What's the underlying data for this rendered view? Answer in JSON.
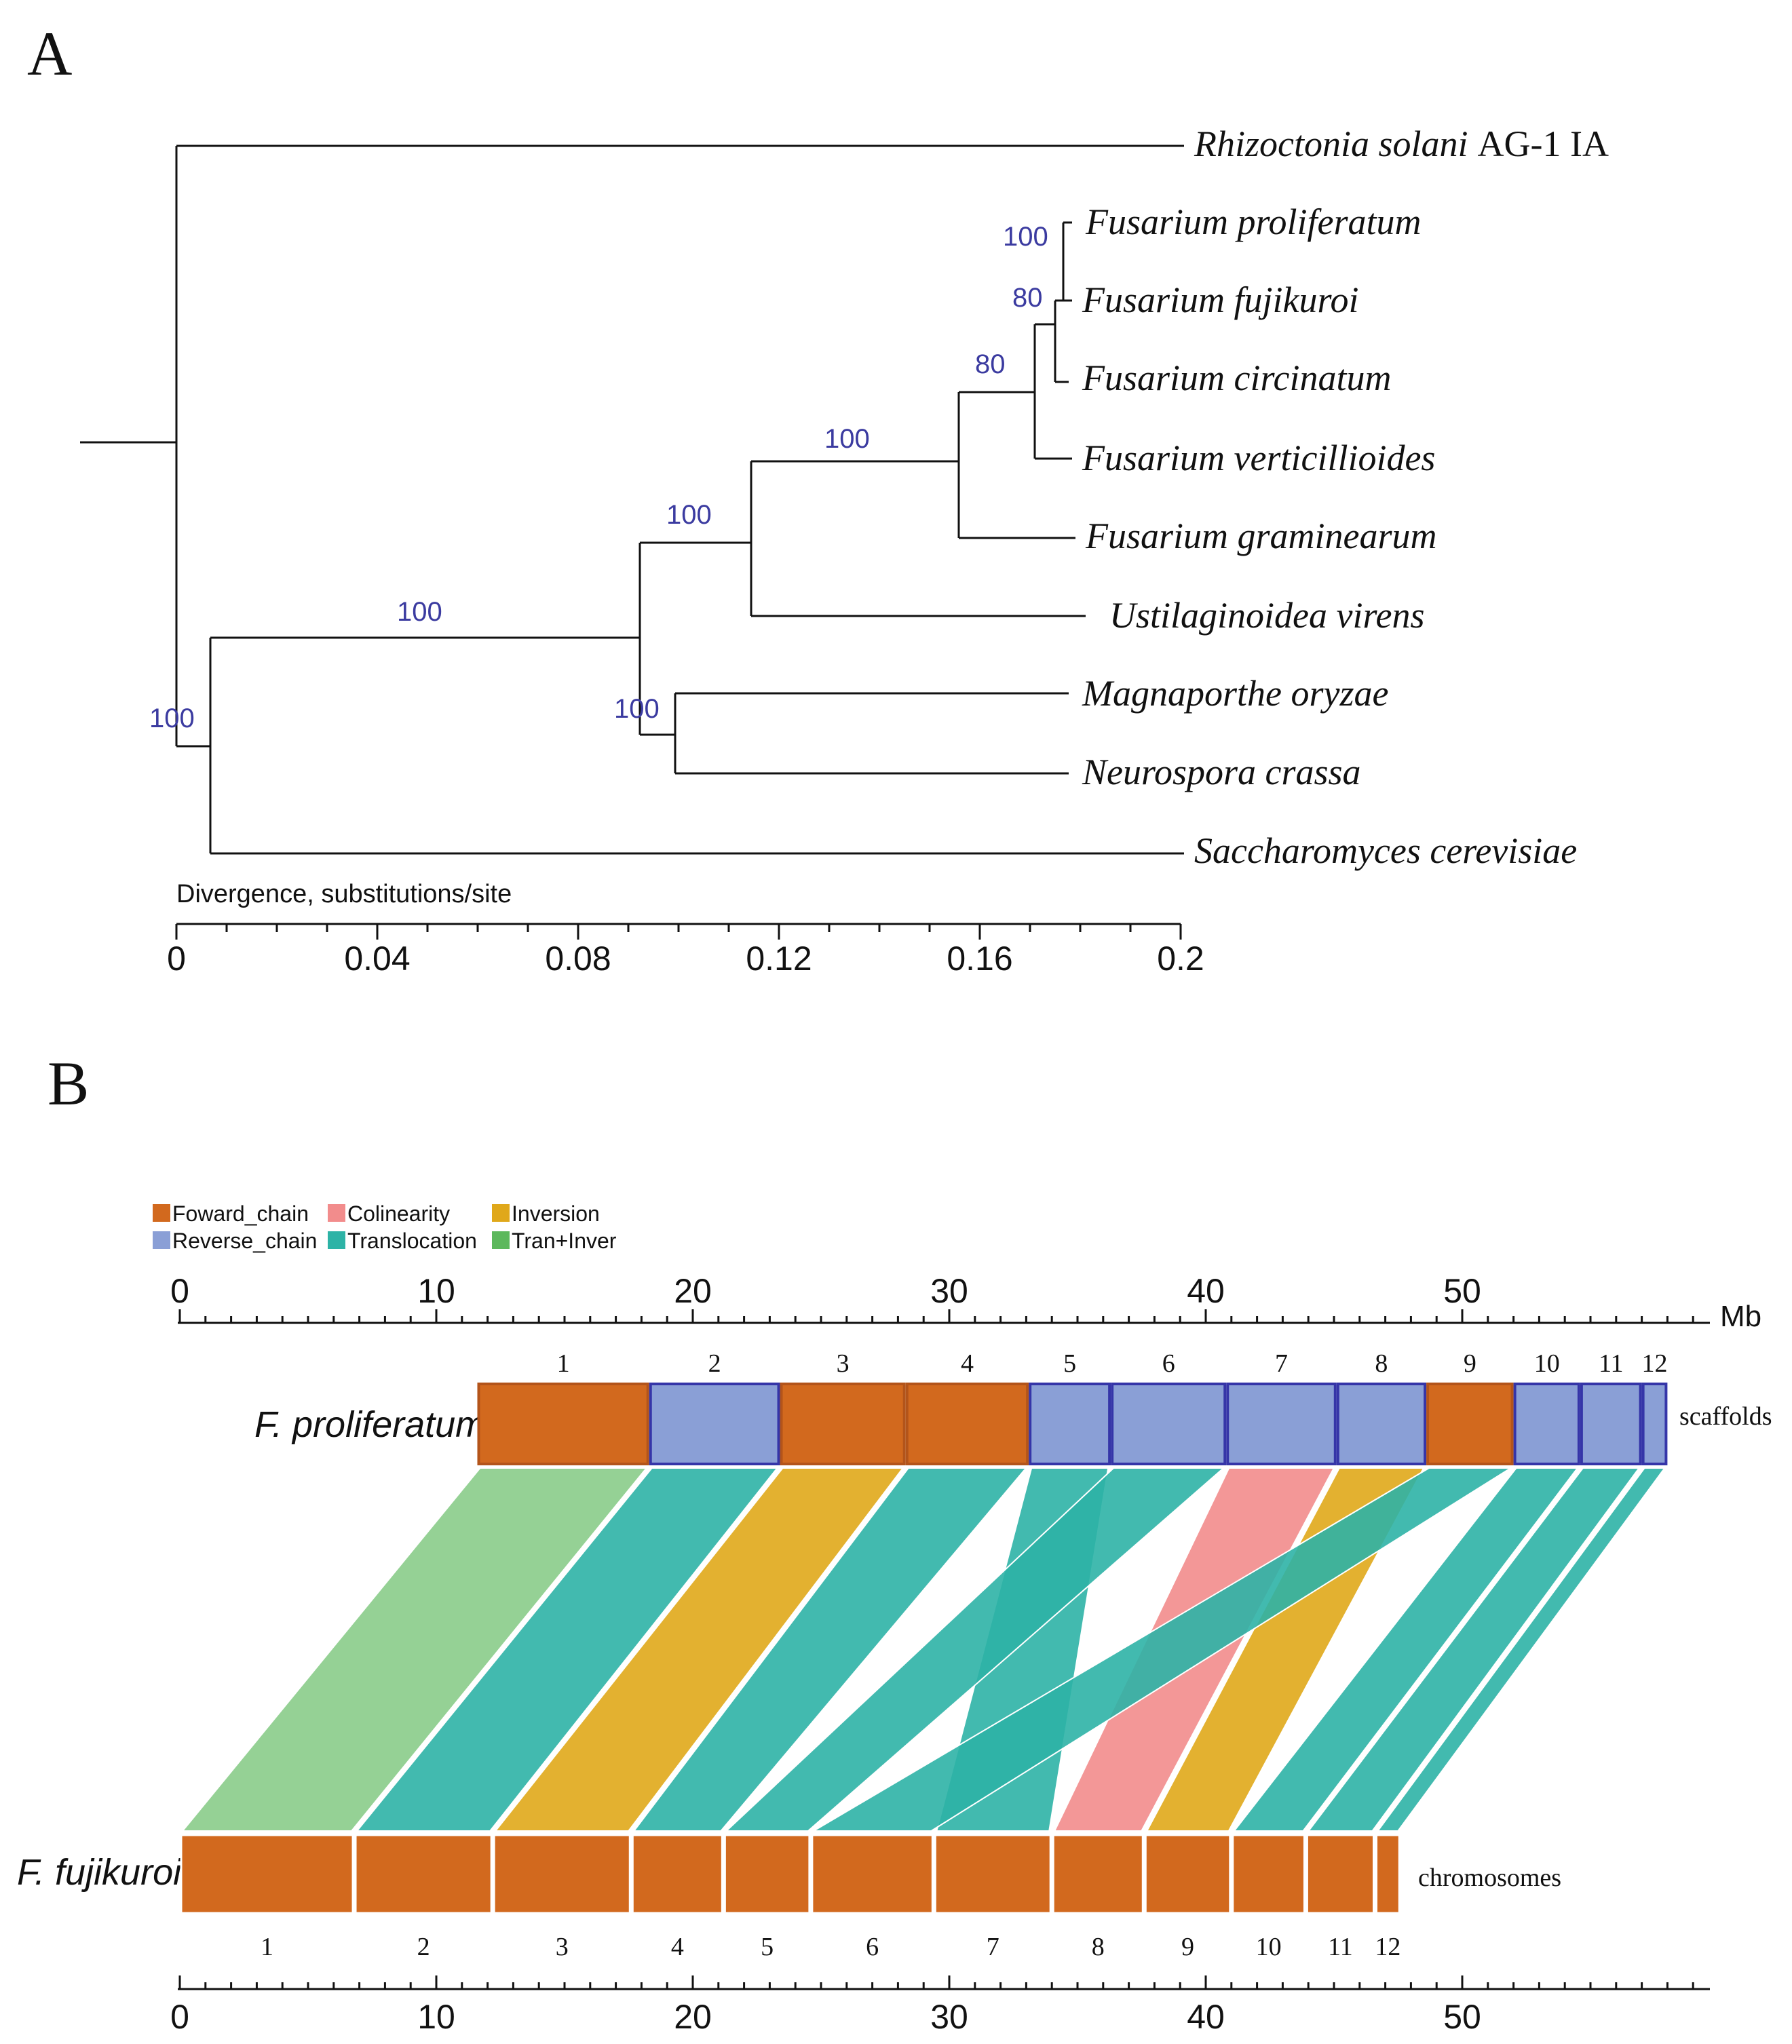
{
  "panel_a": {
    "letter": "A",
    "axis_title": "Divergence, substitutions/site",
    "tick_labels": [
      "0",
      "0.04",
      "0.08",
      "0.12",
      "0.16",
      "0.2"
    ]
  },
  "panel_b": {
    "letter": "B",
    "top_genome": "F. proliferatum",
    "bottom_genome": "F. fujikuroi",
    "top_side_label": "scaffolds",
    "bottom_side_label": "chromosomes",
    "axis_unit": "Mb",
    "top_ticks": [
      "0",
      "10",
      "20",
      "30",
      "40",
      "50"
    ],
    "bottom_ticks": [
      "0",
      "10",
      "20",
      "30",
      "40",
      "50"
    ],
    "legend": [
      {
        "label": "Foward_chain",
        "color": "#d2691e"
      },
      {
        "label": "Colinearity",
        "color": "#f28c8c"
      },
      {
        "label": "Inversion",
        "color": "#e0a81a"
      },
      {
        "label": "Reverse_chain",
        "color": "#8a9fd6"
      },
      {
        "label": "Translocation",
        "color": "#2db3a6"
      },
      {
        "label": "Tran+Inver",
        "color": "#5cb85c"
      }
    ]
  },
  "chart_data": [
    {
      "type": "tree",
      "title": "",
      "xlabel": "Divergence, substitutions/site",
      "xlim": [
        0,
        0.2
      ],
      "taxa": [
        {
          "name": "Rhizoctonia solani",
          "suffix": "AG-1 IA"
        },
        {
          "name": "Fusarium proliferatum"
        },
        {
          "name": "Fusarium fujikuroi"
        },
        {
          "name": "Fusarium circinatum"
        },
        {
          "name": "Fusarium verticillioides"
        },
        {
          "name": "Fusarium graminearum"
        },
        {
          "name": "Ustilaginoidea virens"
        },
        {
          "name": "Magnaporthe oryzae"
        },
        {
          "name": "Neurospora crassa"
        },
        {
          "name": "Saccharomyces cerevisiae"
        }
      ],
      "support_values": [
        "100",
        "80",
        "80",
        "100",
        "100",
        "100",
        "100",
        "100"
      ]
    },
    {
      "type": "synteny",
      "title": "",
      "axis_unit": "Mb",
      "top": {
        "genome": "F. proliferatum",
        "kind": "scaffolds",
        "blocks": [
          {
            "label": "1",
            "start": 11.6,
            "end": 18.3,
            "chain": "forward"
          },
          {
            "label": "2",
            "start": 18.3,
            "end": 23.4,
            "chain": "reverse"
          },
          {
            "label": "3",
            "start": 23.4,
            "end": 28.3,
            "chain": "forward"
          },
          {
            "label": "4",
            "start": 28.3,
            "end": 33.1,
            "chain": "forward"
          },
          {
            "label": "5",
            "start": 33.1,
            "end": 36.3,
            "chain": "reverse"
          },
          {
            "label": "6",
            "start": 36.3,
            "end": 40.8,
            "chain": "reverse"
          },
          {
            "label": "7",
            "start": 40.8,
            "end": 45.1,
            "chain": "reverse"
          },
          {
            "label": "8",
            "start": 45.1,
            "end": 48.6,
            "chain": "reverse"
          },
          {
            "label": "9",
            "start": 48.6,
            "end": 52.0,
            "chain": "forward"
          },
          {
            "label": "10",
            "start": 52.0,
            "end": 54.6,
            "chain": "reverse"
          },
          {
            "label": "11",
            "start": 54.6,
            "end": 57.0,
            "chain": "reverse"
          },
          {
            "label": "12",
            "start": 57.0,
            "end": 58.0,
            "chain": "reverse"
          }
        ]
      },
      "bottom": {
        "genome": "F. fujikuroi",
        "kind": "chromosomes",
        "blocks": [
          {
            "label": "1",
            "start": 0,
            "end": 6.8
          },
          {
            "label": "2",
            "start": 6.8,
            "end": 12.2
          },
          {
            "label": "3",
            "start": 12.2,
            "end": 17.6
          },
          {
            "label": "4",
            "start": 17.6,
            "end": 21.2
          },
          {
            "label": "5",
            "start": 21.2,
            "end": 24.6
          },
          {
            "label": "6",
            "start": 24.6,
            "end": 29.4
          },
          {
            "label": "7",
            "start": 29.4,
            "end": 34.0
          },
          {
            "label": "8",
            "start": 34.0,
            "end": 37.6
          },
          {
            "label": "9",
            "start": 37.6,
            "end": 41.0
          },
          {
            "label": "10",
            "start": 41.0,
            "end": 43.9
          },
          {
            "label": "11",
            "start": 43.9,
            "end": 46.6
          },
          {
            "label": "12",
            "start": 46.6,
            "end": 47.6
          }
        ]
      },
      "links": [
        {
          "top": "1",
          "bottom": "1",
          "type": "Tran+Inver"
        },
        {
          "top": "2",
          "bottom": "2",
          "type": "Translocation"
        },
        {
          "top": "3",
          "bottom": "3",
          "type": "Inversion"
        },
        {
          "top": "4",
          "bottom": "4",
          "type": "Translocation"
        },
        {
          "top": "5",
          "bottom": "7",
          "type": "Translocation"
        },
        {
          "top": "6",
          "bottom": "5",
          "type": "Translocation"
        },
        {
          "top": "7",
          "bottom": "8",
          "type": "Colinearity"
        },
        {
          "top": "8",
          "bottom": "9",
          "type": "Inversion"
        },
        {
          "top": "9",
          "bottom": "6",
          "type": "Translocation"
        },
        {
          "top": "10",
          "bottom": "10",
          "type": "Translocation"
        },
        {
          "top": "11",
          "bottom": "11",
          "type": "Translocation"
        },
        {
          "top": "12",
          "bottom": "12",
          "type": "Translocation"
        }
      ]
    }
  ]
}
